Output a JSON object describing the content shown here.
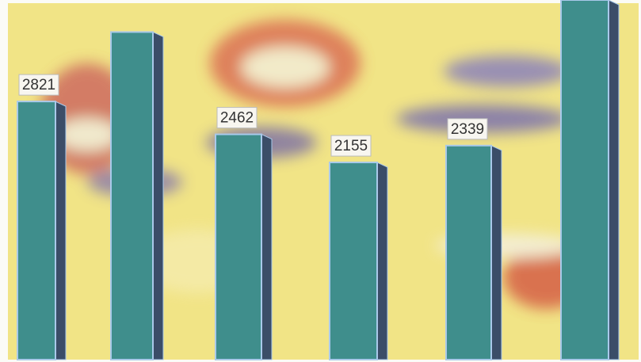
{
  "chart_data": {
    "type": "bar",
    "values": [
      2821,
      3580,
      2462,
      2155,
      2339,
      3930
    ],
    "value_labels": [
      "2821",
      null,
      "2462",
      "2155",
      "2339",
      null
    ],
    "color": "#3f8e8c",
    "side_color": "#3b4d68",
    "edge_color": "#a9c9ea"
  }
}
